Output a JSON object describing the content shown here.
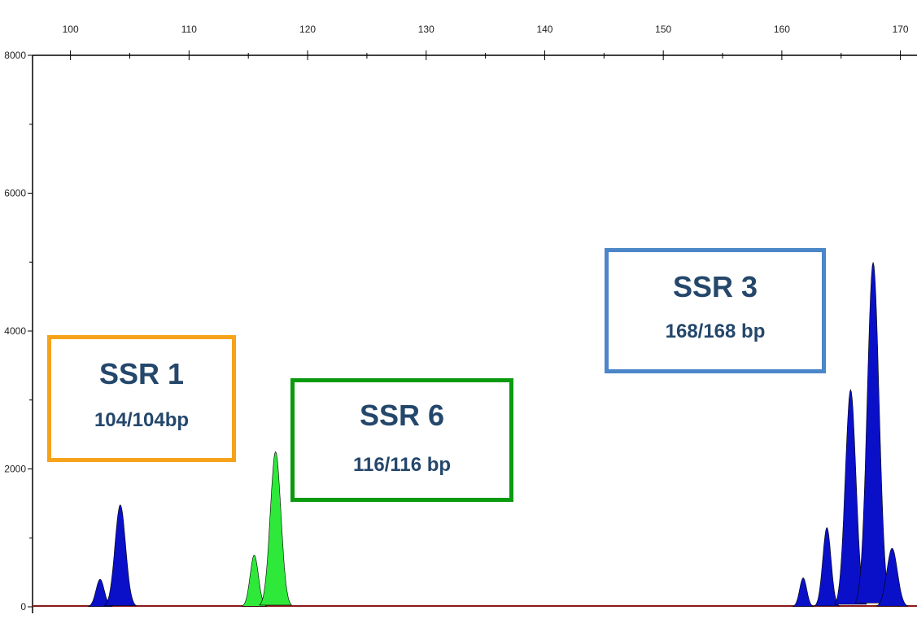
{
  "chart_data": {
    "type": "area",
    "title": "",
    "xlabel": "",
    "ylabel": "",
    "xlim": [
      96.8,
      171.4
    ],
    "ylim": [
      0,
      8000
    ],
    "x_ticks": [
      100,
      110,
      120,
      130,
      140,
      150,
      160,
      170
    ],
    "y_ticks": [
      0,
      2000,
      4000,
      6000,
      8000
    ],
    "grid": false,
    "series": [
      {
        "color": "#0a10c8",
        "peaks": [
          {
            "x": 102.5,
            "height": 400,
            "width": 0.35
          },
          {
            "x": 104.2,
            "height": 1480,
            "width": 0.45
          },
          {
            "x": 161.8,
            "height": 420,
            "width": 0.3
          },
          {
            "x": 163.8,
            "height": 1150,
            "width": 0.35
          },
          {
            "x": 165.8,
            "height": 3150,
            "width": 0.45
          },
          {
            "x": 167.7,
            "height": 5000,
            "width": 0.5
          },
          {
            "x": 169.3,
            "height": 850,
            "width": 0.45
          }
        ]
      },
      {
        "color": "#2ee83a",
        "peaks": [
          {
            "x": 115.5,
            "height": 750,
            "width": 0.35
          },
          {
            "x": 117.3,
            "height": 2250,
            "width": 0.45
          }
        ]
      }
    ],
    "annotations": [
      {
        "id": "ssr1",
        "title": "SSR 1",
        "subtitle": "104/104bp",
        "color": "#f7a21b"
      },
      {
        "id": "ssr6",
        "title": "SSR 6",
        "subtitle": "116/116 bp",
        "color": "#0a9a10"
      },
      {
        "id": "ssr3",
        "title": "SSR 3",
        "subtitle": "168/168 bp",
        "color": "#4a86c8"
      }
    ]
  }
}
